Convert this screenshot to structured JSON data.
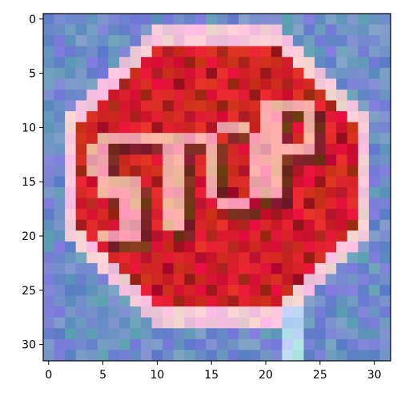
{
  "chart_data": {
    "type": "heatmap",
    "title": "",
    "xlabel": "",
    "ylabel": "",
    "xlim": [
      -0.5,
      31.5
    ],
    "ylim": [
      31.5,
      -0.5
    ],
    "grid": false,
    "x_ticks": [
      0,
      5,
      10,
      15,
      20,
      25,
      30
    ],
    "y_ticks": [
      0,
      5,
      10,
      15,
      20,
      25,
      30
    ],
    "x_tick_labels": [
      "0",
      "5",
      "10",
      "15",
      "20",
      "25",
      "30"
    ],
    "y_tick_labels": [
      "0",
      "5",
      "10",
      "15",
      "20",
      "25",
      "30"
    ],
    "image_size": [
      32,
      32
    ],
    "image_content": "low-resolution pixelated photo of a red octagonal STOP sign on a blue background",
    "colors": {
      "background_blue": "#6f8fc8",
      "sign_red": "#d8202a",
      "dark_red": "#a81822",
      "sign_border": "#f4c8d8",
      "letters": "#f4a8a8",
      "letter_shadow": "#7a2a22",
      "pole": "#b8d8f0"
    }
  }
}
